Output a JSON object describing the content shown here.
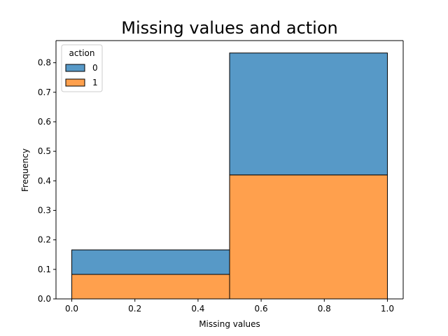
{
  "chart_data": {
    "type": "bar",
    "stacked": true,
    "histogram": true,
    "title": "Missing values and action",
    "xlabel": "Missing values",
    "ylabel": "Frequency",
    "xlim": [
      -0.05,
      1.05
    ],
    "ylim": [
      0,
      0.875
    ],
    "bins": [
      [
        0.0,
        0.5
      ],
      [
        0.5,
        1.0
      ]
    ],
    "xticks": [
      0.0,
      0.2,
      0.4,
      0.6,
      0.8,
      1.0
    ],
    "xtick_labels": [
      "0.0",
      "0.2",
      "0.4",
      "0.6",
      "0.8",
      "1.0"
    ],
    "yticks": [
      0.0,
      0.1,
      0.2,
      0.3,
      0.4,
      0.5,
      0.6,
      0.7,
      0.8
    ],
    "ytick_labels": [
      "0.0",
      "0.1",
      "0.2",
      "0.3",
      "0.4",
      "0.5",
      "0.6",
      "0.7",
      "0.8"
    ],
    "series": [
      {
        "name": "1",
        "color": "#FFA04D",
        "values": [
          0.083,
          0.42
        ]
      },
      {
        "name": "0",
        "color": "#5799C7",
        "values": [
          0.083,
          0.413
        ]
      }
    ],
    "grid": false,
    "legend": {
      "title": "action",
      "placement": "top-left",
      "entries": [
        {
          "label": "0",
          "color": "#5799C7"
        },
        {
          "label": "1",
          "color": "#FFA04D"
        }
      ]
    }
  }
}
